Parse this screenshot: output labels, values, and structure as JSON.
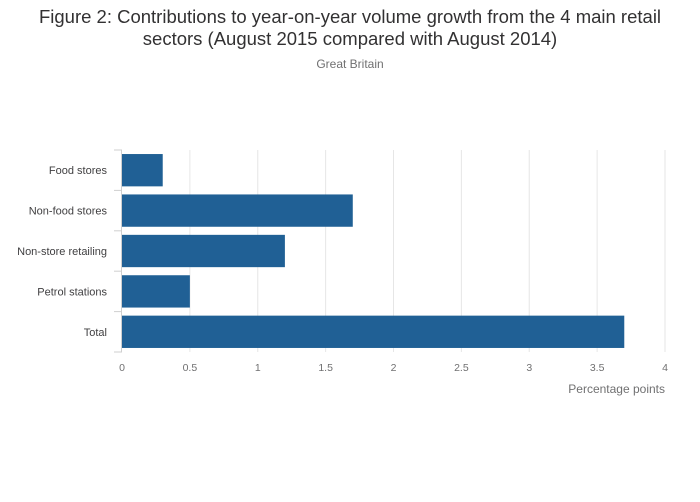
{
  "chart_data": {
    "type": "bar",
    "orientation": "horizontal",
    "title": "Figure 2: Contributions to year-on-year volume growth from the 4 main retail sectors (August 2015 compared with August 2014)",
    "subtitle": "Great Britain",
    "categories": [
      "Food stores",
      "Non-food stores",
      "Non-store retailing",
      "Petrol stations",
      "Total"
    ],
    "values": [
      0.3,
      1.7,
      1.2,
      0.5,
      3.7
    ],
    "xlabel": "Percentage points",
    "xlim": [
      0,
      4
    ],
    "xticks": [
      "0",
      "0.5",
      "1",
      "1.5",
      "2",
      "2.5",
      "3",
      "3.5",
      "4"
    ],
    "grid": true,
    "legend": "none",
    "bar_color": "#206095"
  }
}
